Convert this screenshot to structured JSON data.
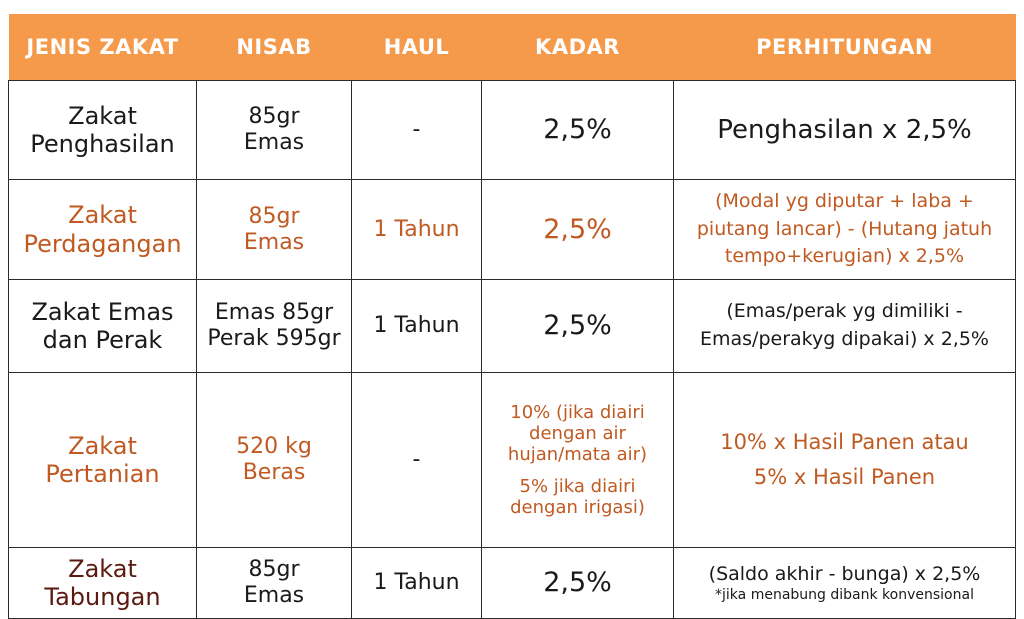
{
  "headers": {
    "jenis": "JENIS ZAKAT",
    "nisab": "NISAB",
    "haul": "HAUL",
    "kadar": "KADAR",
    "perhitungan": "PERHITUNGAN"
  },
  "rows": [
    {
      "jenis": "Zakat\nPenghasilan",
      "nisab": "85gr\nEmas",
      "haul": "-",
      "kadar": "2,5%",
      "perhitungan": "Penghasilan x 2,5%"
    },
    {
      "jenis": "Zakat\nPerdagangan",
      "nisab": "85gr\nEmas",
      "haul": "1 Tahun",
      "kadar": "2,5%",
      "perhitungan": "(Modal yg diputar + laba +\npiutang lancar) - (Hutang jatuh\ntempo+kerugian) x 2,5%"
    },
    {
      "jenis": "Zakat Emas\ndan Perak",
      "nisab": "Emas 85gr\nPerak 595gr",
      "haul": "1 Tahun",
      "kadar": "2,5%",
      "perhitungan": "(Emas/perak yg dimiliki -\nEmas/perakyg dipakai) x 2,5%"
    },
    {
      "jenis": "Zakat\nPertanian",
      "nisab": "520 kg\nBeras",
      "haul": "-",
      "kadar_a": "10% (jika diairi\ndengan air\nhujan/mata air)",
      "kadar_b": "5% jika diairi\ndengan irigasi)",
      "perhitungan": "10% x Hasil Panen atau\n5% x Hasil Panen"
    },
    {
      "jenis": "Zakat\nTabungan",
      "nisab": "85gr\nEmas",
      "haul": "1 Tahun",
      "kadar": "2,5%",
      "perhitungan": "(Saldo akhir - bunga) x 2,5%",
      "catatan": "*jika menabung dibank konvensional"
    }
  ],
  "colors": {
    "header_bg": "#f59a4a",
    "header_text": "#ffffff",
    "orange_text": "#c05a22",
    "brown_text": "#5b1a10",
    "dark_text": "#1a1a1a"
  }
}
